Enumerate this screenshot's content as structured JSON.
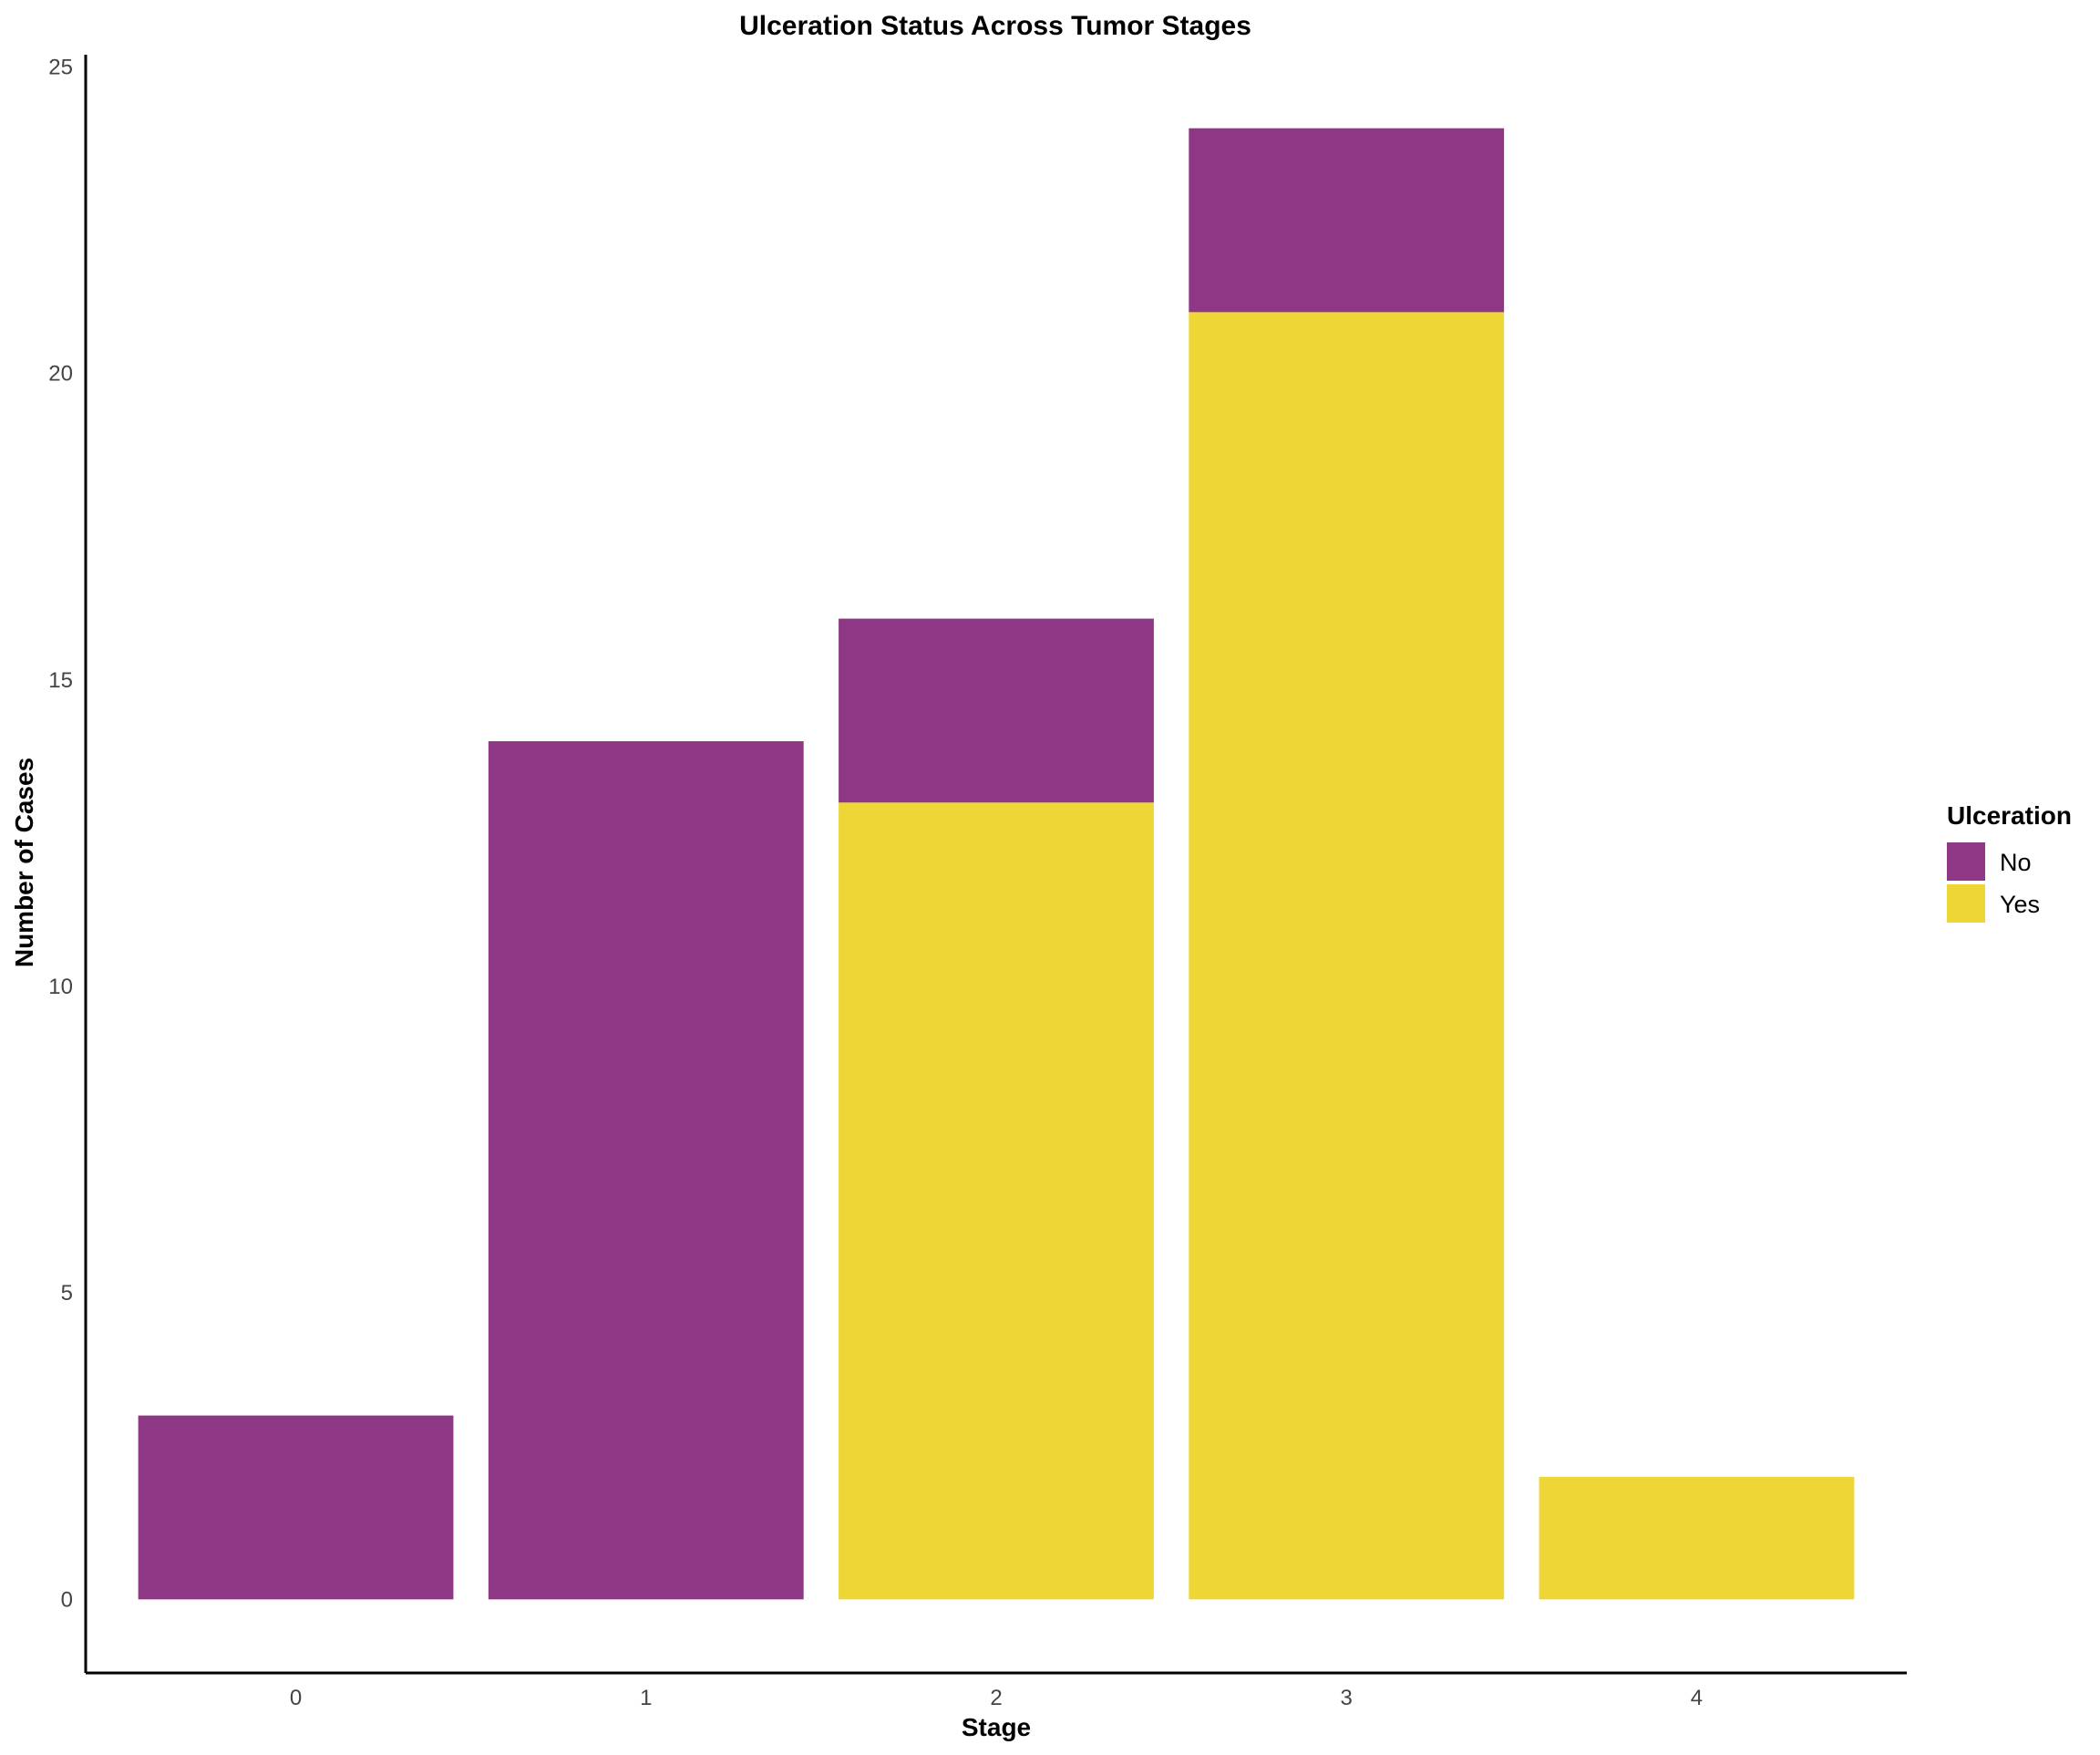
{
  "chart_data": {
    "type": "bar",
    "stacked": true,
    "title": "Ulceration Status Across Tumor Stages",
    "xlabel": "Stage",
    "ylabel": "Number of Cases",
    "categories": [
      "0",
      "1",
      "2",
      "3",
      "4"
    ],
    "series": [
      {
        "name": "Yes",
        "color": "#EDD636",
        "values": [
          0,
          0,
          13,
          21,
          2
        ]
      },
      {
        "name": "No",
        "color": "#8E3885",
        "values": [
          3,
          14,
          3,
          3,
          0
        ]
      }
    ],
    "ylim": [
      -1.2,
      25.2
    ],
    "yticks": [
      0,
      5,
      10,
      15,
      20,
      25
    ],
    "grid": false,
    "legend": {
      "title": "Ulceration",
      "placement": "right",
      "entries": [
        {
          "label": "No",
          "color": "#8E3885"
        },
        {
          "label": "Yes",
          "color": "#EDD636"
        }
      ]
    }
  }
}
